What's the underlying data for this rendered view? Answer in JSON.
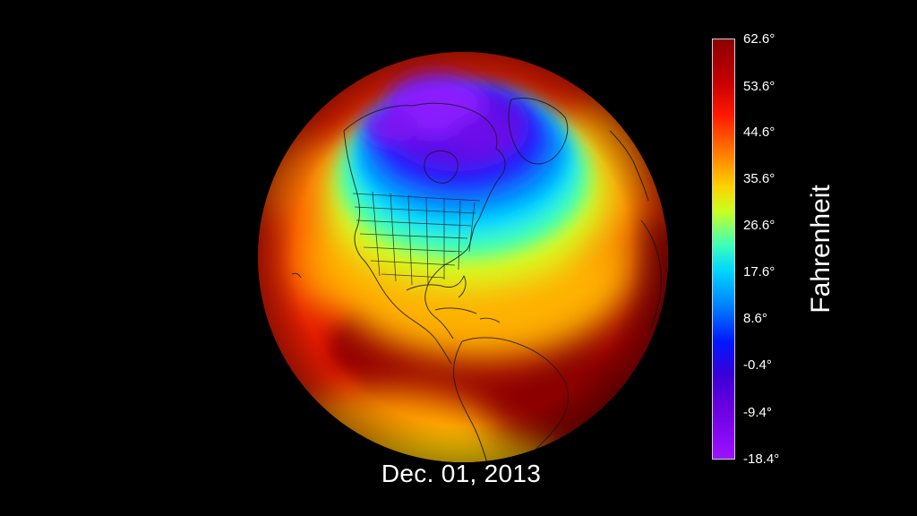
{
  "date": "Dec. 01, 2013",
  "legend": {
    "unit": "Fahrenheit",
    "ticks": [
      "62.6°",
      "53.6°",
      "44.6°",
      "35.6°",
      "26.6°",
      "17.6°",
      "8.6°",
      "-0.4°",
      "-9.4°",
      "-18.4°"
    ],
    "max": 62.6,
    "min": -18.4,
    "colors": [
      "#8c0000",
      "#ff1800",
      "#ff7a00",
      "#ffd200",
      "#3dffb8",
      "#00d8ff",
      "#0018ff",
      "#6a00e0",
      "#9d12ff"
    ]
  },
  "map": {
    "projection": "orthographic globe",
    "region": "Western Hemisphere",
    "borders": "country and US state outlines"
  }
}
